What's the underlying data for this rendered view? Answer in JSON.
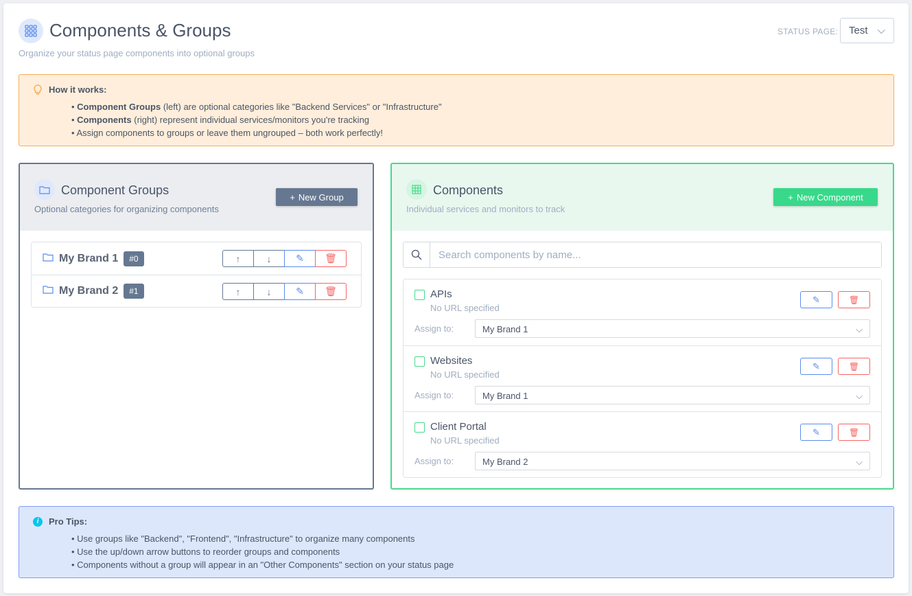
{
  "header": {
    "title": "Components & Groups",
    "subtitle": "Organize your status page components into optional groups",
    "status_page_label": "STATUS PAGE:",
    "status_page_value": "Test"
  },
  "how_it_works": {
    "title": "How it works:",
    "items": [
      {
        "bold": "Component Groups",
        "text": " (left) are optional categories like \"Backend Services\" or \"Infrastructure\""
      },
      {
        "bold": "Components",
        "text": " (right) represent individual services/monitors you're tracking"
      },
      {
        "bold": "",
        "text": "Assign components to groups or leave them ungrouped – both work perfectly!"
      }
    ]
  },
  "groups_panel": {
    "title": "Component Groups",
    "subtitle": "Optional categories for organizing components",
    "new_button": "New Group",
    "groups": [
      {
        "name": "My Brand 1",
        "badge": "#0"
      },
      {
        "name": "My Brand 2",
        "badge": "#1"
      }
    ]
  },
  "components_panel": {
    "title": "Components",
    "subtitle": "Individual services and monitors to track",
    "new_button": "New Component",
    "search_placeholder": "Search components by name...",
    "assign_label": "Assign to:",
    "components": [
      {
        "name": "APIs",
        "url": "No URL specified",
        "group": "My Brand 1"
      },
      {
        "name": "Websites",
        "url": "No URL specified",
        "group": "My Brand 1"
      },
      {
        "name": "Client Portal",
        "url": "No URL specified",
        "group": "My Brand 2"
      }
    ]
  },
  "pro_tips": {
    "title": "Pro Tips:",
    "items": [
      "Use groups like \"Backend\", \"Frontend\", \"Infrastructure\" to organize many components",
      "Use the up/down arrow buttons to reorder groups and components",
      "Components without a group will appear in an \"Other Components\" section on your status page"
    ]
  },
  "colors": {
    "groups_accent": "#667891",
    "components_accent": "#48d98a",
    "info_orange": "#f6ad55",
    "tips_blue": "#7f9cf5",
    "danger": "#f56565",
    "edit": "#5a8dee"
  }
}
